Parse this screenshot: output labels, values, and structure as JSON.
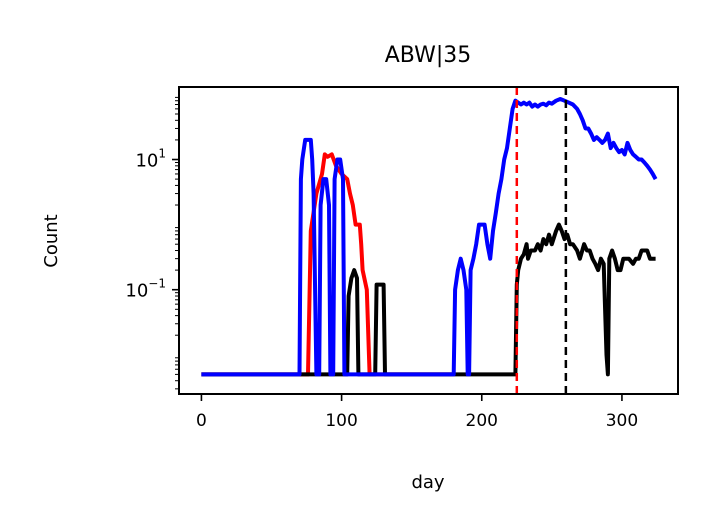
{
  "chart_data": {
    "type": "line",
    "title": "ABW|35",
    "xlabel": "day",
    "ylabel": "Count",
    "xlim": [
      -16,
      340
    ],
    "ylim": [
      0.0025,
      130
    ],
    "yscale": "log",
    "grid": false,
    "x_ticks": [
      {
        "value": 0,
        "label": "0"
      },
      {
        "value": 100,
        "label": "100"
      },
      {
        "value": 200,
        "label": "200"
      },
      {
        "value": 300,
        "label": "300"
      }
    ],
    "y_ticks": [
      {
        "value": 0.1,
        "base": "10",
        "exp": "−1"
      },
      {
        "value": 10,
        "base": "10",
        "exp": "1"
      }
    ],
    "vlines": [
      {
        "x": 225,
        "color": "#ff0000"
      },
      {
        "x": 260,
        "color": "#000000"
      }
    ],
    "series": [
      {
        "color": "#ff0000",
        "points": [
          [
            0,
            0.005
          ],
          [
            70,
            0.005
          ],
          [
            76,
            0.005
          ],
          [
            78,
            0.8
          ],
          [
            82,
            3
          ],
          [
            86,
            6
          ],
          [
            88,
            12
          ],
          [
            90,
            11
          ],
          [
            93,
            12
          ],
          [
            96,
            8
          ],
          [
            100,
            6
          ],
          [
            104,
            5
          ],
          [
            106,
            3
          ],
          [
            108,
            2
          ],
          [
            110,
            1
          ],
          [
            113,
            1
          ],
          [
            114,
            0.5
          ],
          [
            115,
            0.2
          ],
          [
            118,
            0.1
          ],
          [
            120,
            0.005
          ],
          [
            180,
            0.005
          ]
        ]
      },
      {
        "color": "#000000",
        "points": [
          [
            0,
            0.005
          ],
          [
            104,
            0.005
          ],
          [
            105,
            0.08
          ],
          [
            107,
            0.15
          ],
          [
            109,
            0.2
          ],
          [
            111,
            0.15
          ],
          [
            112,
            0.005
          ],
          [
            124,
            0.005
          ],
          [
            125,
            0.12
          ],
          [
            130,
            0.12
          ],
          [
            131,
            0.005
          ],
          [
            224,
            0.005
          ],
          [
            225,
            0.12
          ],
          [
            226,
            0.2
          ],
          [
            228,
            0.3
          ],
          [
            230,
            0.35
          ],
          [
            232,
            0.5
          ],
          [
            233,
            0.3
          ],
          [
            235,
            0.4
          ],
          [
            238,
            0.4
          ],
          [
            240,
            0.5
          ],
          [
            242,
            0.4
          ],
          [
            244,
            0.6
          ],
          [
            246,
            0.5
          ],
          [
            248,
            0.7
          ],
          [
            250,
            0.5
          ],
          [
            253,
            0.8
          ],
          [
            255,
            1.0
          ],
          [
            257,
            0.8
          ],
          [
            259,
            0.6
          ],
          [
            261,
            0.7
          ],
          [
            263,
            0.5
          ],
          [
            265,
            0.5
          ],
          [
            268,
            0.4
          ],
          [
            270,
            0.3
          ],
          [
            273,
            0.5
          ],
          [
            275,
            0.4
          ],
          [
            277,
            0.4
          ],
          [
            279,
            0.3
          ],
          [
            281,
            0.25
          ],
          [
            283,
            0.2
          ],
          [
            285,
            0.3
          ],
          [
            287,
            0.25
          ],
          [
            289,
            0.01
          ],
          [
            290,
            0.005
          ],
          [
            291,
            0.3
          ],
          [
            293,
            0.4
          ],
          [
            295,
            0.3
          ],
          [
            297,
            0.2
          ],
          [
            299,
            0.2
          ],
          [
            301,
            0.3
          ],
          [
            303,
            0.3
          ],
          [
            305,
            0.3
          ],
          [
            308,
            0.25
          ],
          [
            310,
            0.3
          ],
          [
            312,
            0.3
          ],
          [
            314,
            0.4
          ],
          [
            316,
            0.4
          ],
          [
            318,
            0.4
          ],
          [
            320,
            0.3
          ],
          [
            322,
            0.3
          ],
          [
            324,
            0.3
          ]
        ]
      },
      {
        "color": "#0000ff",
        "points": [
          [
            0,
            0.005
          ],
          [
            70,
            0.005
          ],
          [
            71,
            5
          ],
          [
            72,
            10
          ],
          [
            74,
            20
          ],
          [
            78,
            20
          ],
          [
            79,
            10
          ],
          [
            80,
            3
          ],
          [
            82,
            0.005
          ],
          [
            84,
            0.005
          ],
          [
            85,
            2
          ],
          [
            87,
            5
          ],
          [
            89,
            5
          ],
          [
            91,
            2
          ],
          [
            92,
            0.005
          ],
          [
            94,
            0.005
          ],
          [
            95,
            5
          ],
          [
            97,
            10
          ],
          [
            99,
            10
          ],
          [
            101,
            5
          ],
          [
            102,
            0.005
          ],
          [
            180,
            0.005
          ],
          [
            181,
            0.1
          ],
          [
            183,
            0.2
          ],
          [
            185,
            0.3
          ],
          [
            187,
            0.2
          ],
          [
            189,
            0.1
          ],
          [
            190,
            0.005
          ],
          [
            191,
            0.005
          ],
          [
            192,
            0.2
          ],
          [
            194,
            0.3
          ],
          [
            196,
            0.5
          ],
          [
            198,
            1
          ],
          [
            200,
            1
          ],
          [
            202,
            1
          ],
          [
            204,
            0.5
          ],
          [
            206,
            0.3
          ],
          [
            208,
            0.8
          ],
          [
            210,
            1.5
          ],
          [
            212,
            3
          ],
          [
            214,
            5
          ],
          [
            216,
            10
          ],
          [
            218,
            15
          ],
          [
            220,
            30
          ],
          [
            222,
            60
          ],
          [
            224,
            80
          ],
          [
            226,
            75
          ],
          [
            228,
            70
          ],
          [
            230,
            75
          ],
          [
            232,
            70
          ],
          [
            234,
            75
          ],
          [
            236,
            65
          ],
          [
            238,
            70
          ],
          [
            240,
            65
          ],
          [
            242,
            70
          ],
          [
            244,
            72
          ],
          [
            246,
            68
          ],
          [
            248,
            75
          ],
          [
            250,
            72
          ],
          [
            253,
            80
          ],
          [
            256,
            85
          ],
          [
            259,
            80
          ],
          [
            262,
            75
          ],
          [
            265,
            70
          ],
          [
            268,
            60
          ],
          [
            270,
            50
          ],
          [
            272,
            40
          ],
          [
            274,
            30
          ],
          [
            276,
            30
          ],
          [
            278,
            25
          ],
          [
            280,
            20
          ],
          [
            282,
            22
          ],
          [
            284,
            20
          ],
          [
            286,
            18
          ],
          [
            288,
            20
          ],
          [
            290,
            25
          ],
          [
            292,
            15
          ],
          [
            294,
            18
          ],
          [
            296,
            15
          ],
          [
            298,
            13
          ],
          [
            300,
            14
          ],
          [
            302,
            12
          ],
          [
            304,
            18
          ],
          [
            306,
            14
          ],
          [
            308,
            12
          ],
          [
            310,
            11
          ],
          [
            312,
            10
          ],
          [
            314,
            10
          ],
          [
            316,
            9
          ],
          [
            318,
            8
          ],
          [
            320,
            7
          ],
          [
            322,
            6
          ],
          [
            324,
            5
          ]
        ]
      }
    ]
  }
}
